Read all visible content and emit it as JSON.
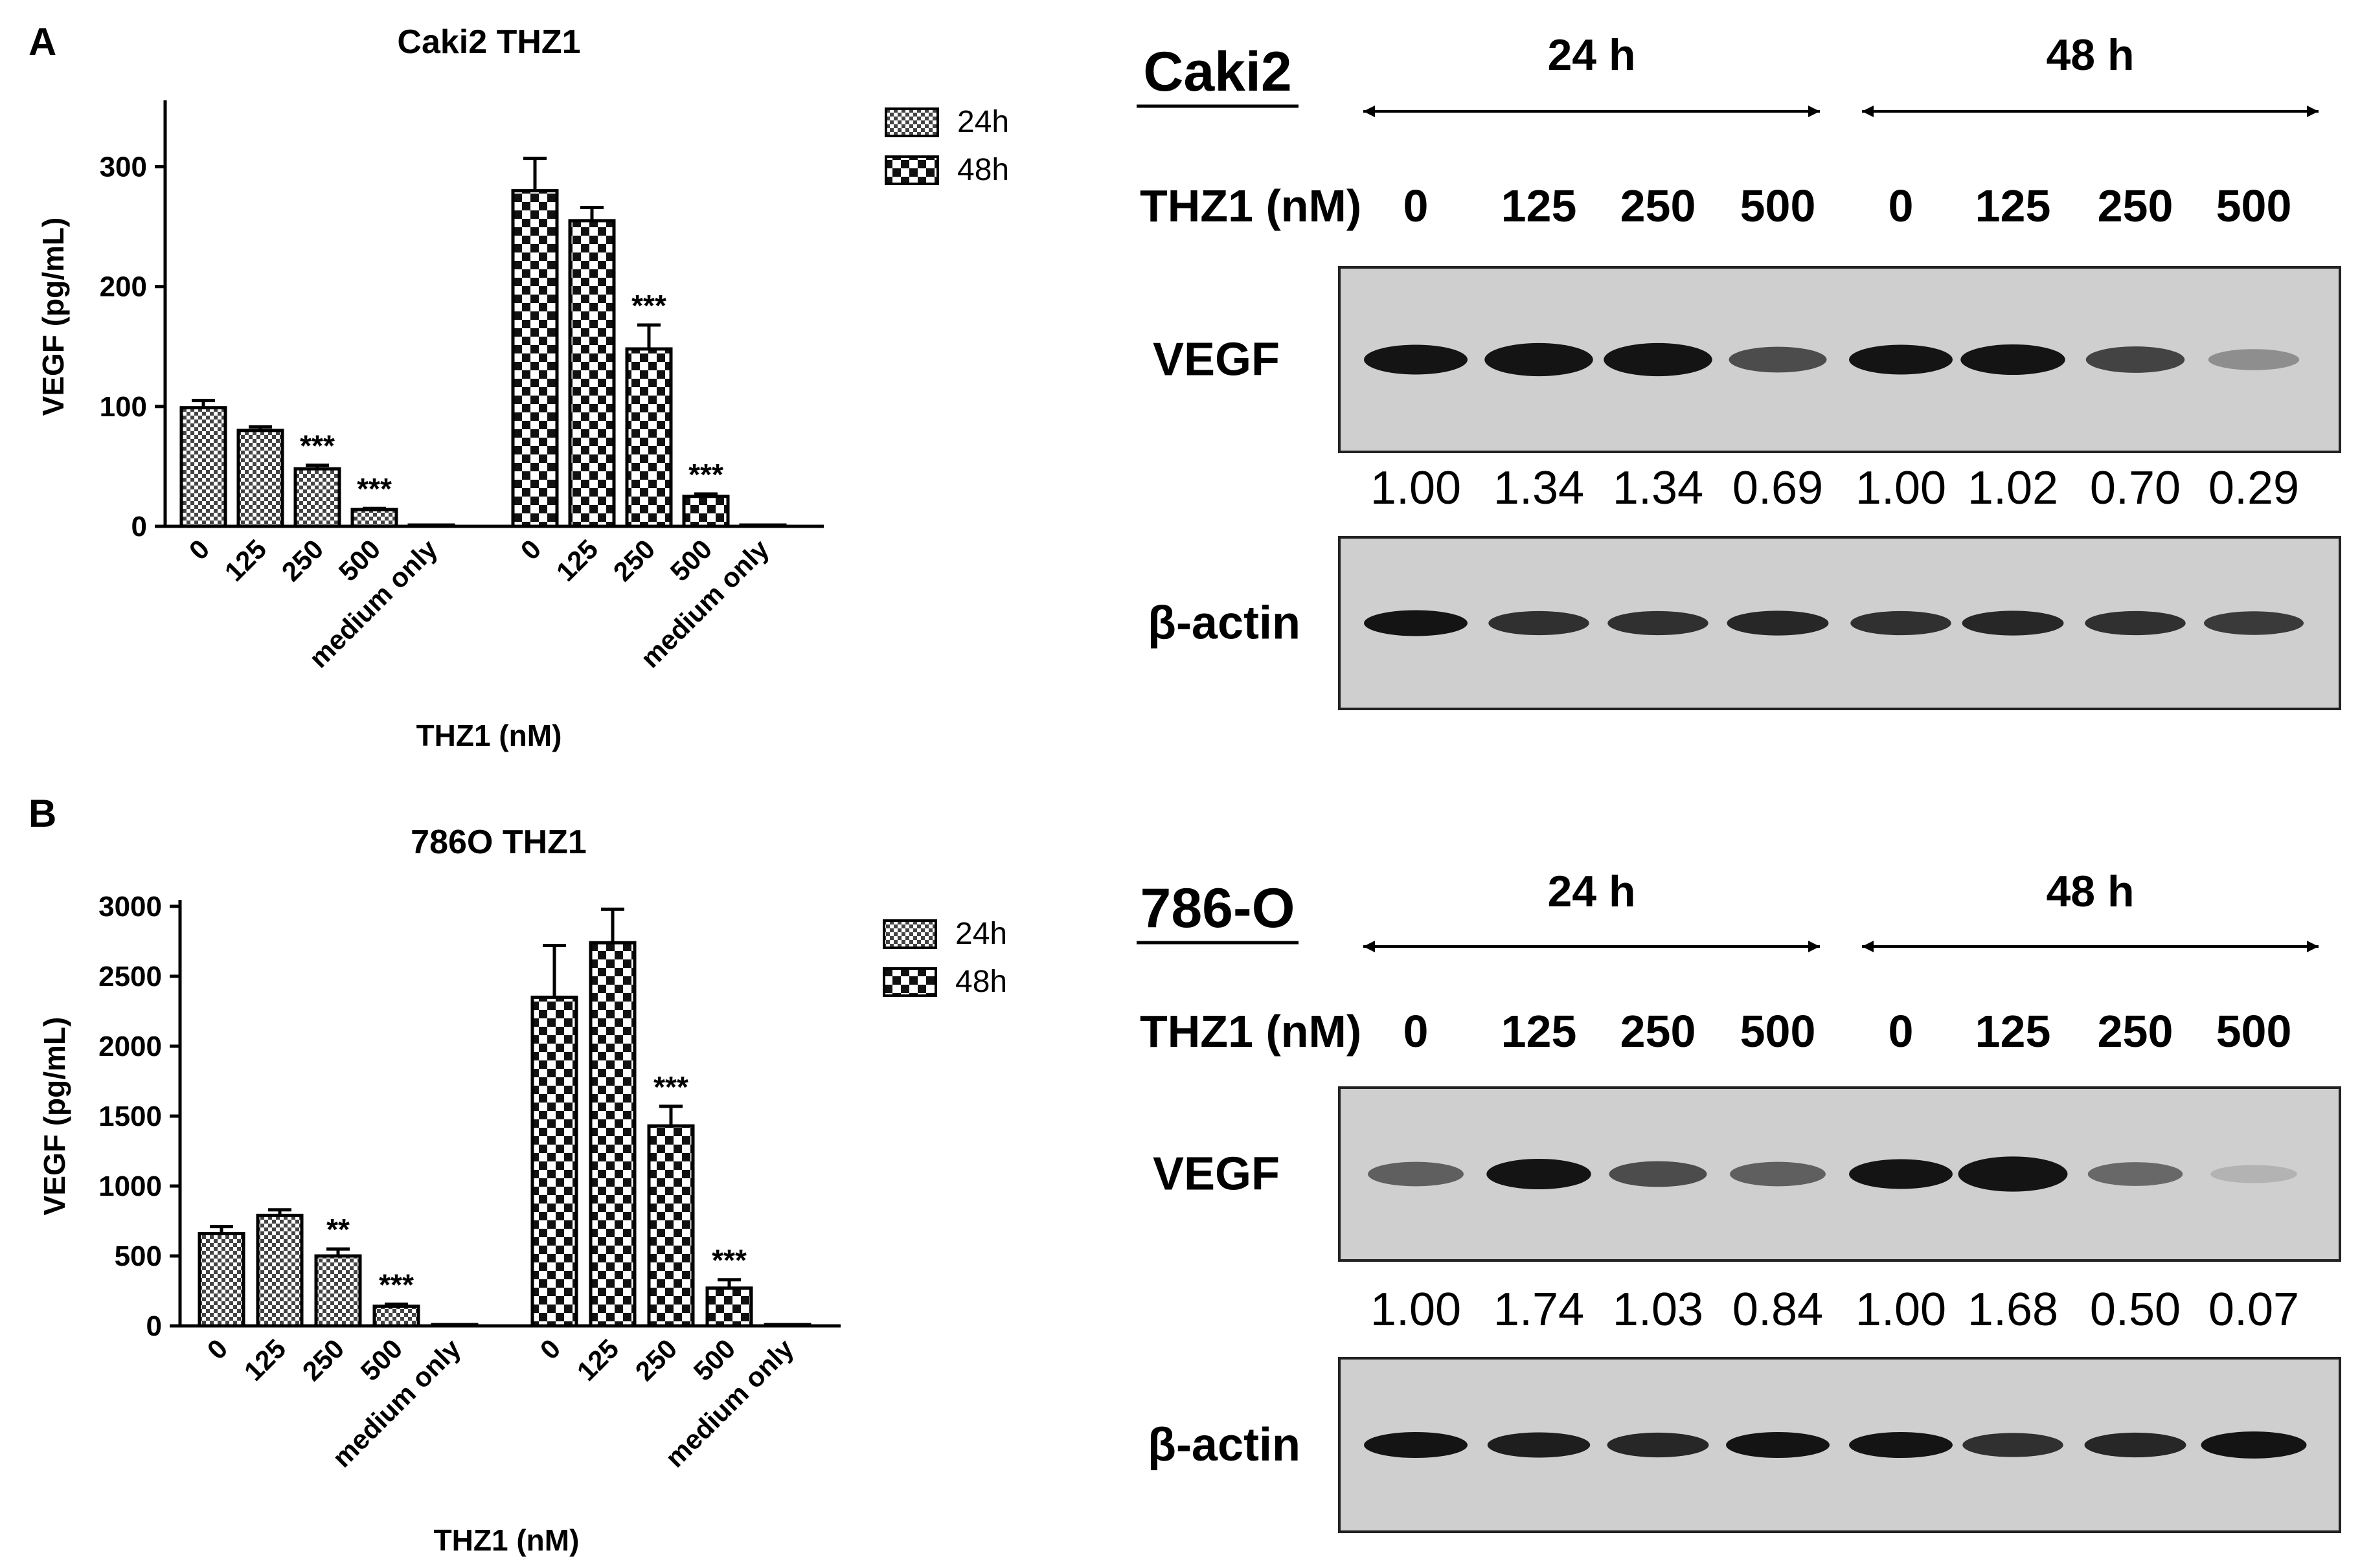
{
  "panels": [
    {
      "letter": "A"
    },
    {
      "letter": "B"
    }
  ],
  "chart_data": [
    {
      "type": "bar",
      "title": "Caki2 THZ1",
      "xlabel": "THZ1 (nM)",
      "ylabel": "VEGF (pg/mL)",
      "ylim": [
        0,
        350
      ],
      "yticks": [
        0,
        100,
        200,
        300
      ],
      "categories": [
        "0",
        "125",
        "250",
        "500",
        "medium only"
      ],
      "legend_position": "right",
      "series": [
        {
          "name": "24h",
          "pattern": "fine-checker",
          "values": [
            99,
            80,
            48,
            14,
            1
          ],
          "errors": [
            6,
            3,
            3,
            1,
            0
          ],
          "significance": [
            "",
            "",
            "***",
            "***",
            ""
          ]
        },
        {
          "name": "48h",
          "pattern": "coarse-checker",
          "values": [
            280,
            255,
            148,
            25,
            1
          ],
          "errors": [
            27,
            11,
            20,
            2,
            0
          ],
          "significance": [
            "",
            "",
            "***",
            "***",
            ""
          ]
        }
      ]
    },
    {
      "type": "bar",
      "title": "786O THZ1",
      "xlabel": "THZ1 (nM)",
      "ylabel": "VEGF (pg/mL)",
      "ylim": [
        0,
        3000
      ],
      "yticks": [
        0,
        500,
        1000,
        1500,
        2000,
        2500,
        3000
      ],
      "categories": [
        "0",
        "125",
        "250",
        "500",
        "medium only"
      ],
      "legend_position": "right",
      "series": [
        {
          "name": "24h",
          "pattern": "fine-checker",
          "values": [
            660,
            790,
            500,
            140,
            5
          ],
          "errors": [
            50,
            40,
            50,
            15,
            0
          ],
          "significance": [
            "",
            "",
            "**",
            "***",
            ""
          ]
        },
        {
          "name": "48h",
          "pattern": "coarse-checker",
          "values": [
            2350,
            2740,
            1430,
            270,
            5
          ],
          "errors": [
            370,
            240,
            140,
            60,
            0
          ],
          "significance": [
            "",
            "",
            "***",
            "***",
            ""
          ]
        }
      ]
    }
  ],
  "blots": [
    {
      "cell_line": "Caki2",
      "time_labels": [
        "24 h",
        "48 h"
      ],
      "dose_header": "THZ1 (nM)",
      "doses": [
        "0",
        "125",
        "250",
        "500",
        "0",
        "125",
        "250",
        "500"
      ],
      "target_label": "VEGF",
      "loading_label": "β-actin",
      "ratios": [
        "1.00",
        "1.34",
        "1.34",
        "0.69",
        "1.00",
        "1.02",
        "0.70",
        "0.29"
      ]
    },
    {
      "cell_line": "786-O",
      "time_labels": [
        "24 h",
        "48 h"
      ],
      "dose_header": "THZ1 (nM)",
      "doses": [
        "0",
        "125",
        "250",
        "500",
        "0",
        "125",
        "250",
        "500"
      ],
      "target_label": "VEGF",
      "loading_label": "β-actin",
      "ratios": [
        "1.00",
        "1.74",
        "1.03",
        "0.84",
        "1.00",
        "1.68",
        "0.50",
        "0.07"
      ]
    }
  ],
  "colors": {
    "axis": "#000000",
    "membrane": "#cfcfcf",
    "band": "#141414"
  }
}
